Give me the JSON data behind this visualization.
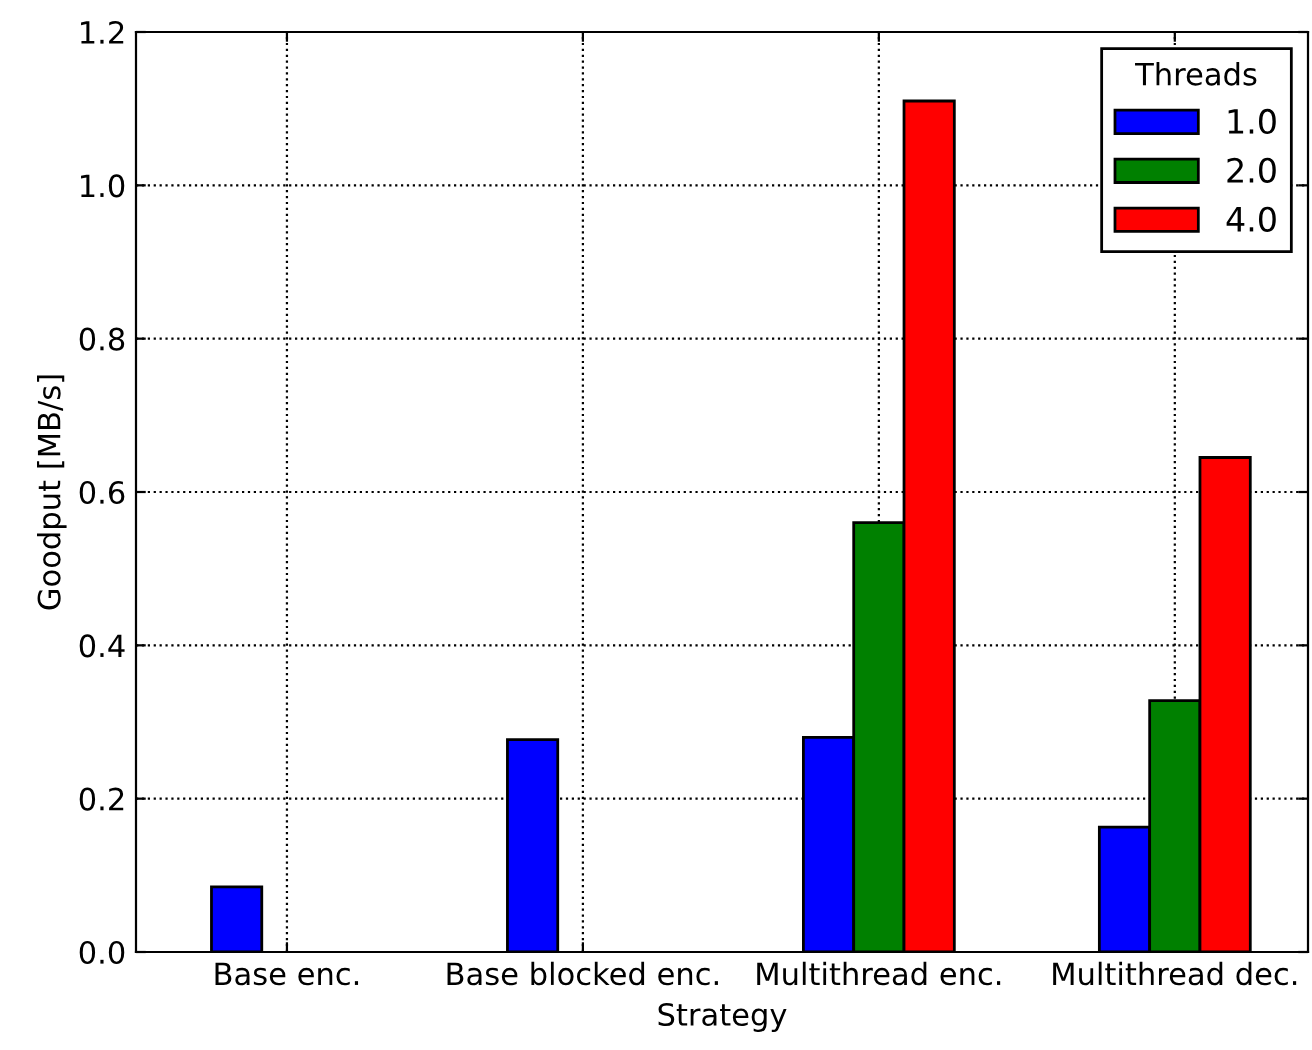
{
  "chart_data": {
    "type": "bar",
    "xlabel": "Strategy",
    "ylabel": "Goodput [MB/s]",
    "legend_title": "Threads",
    "legend": "top right",
    "grid": true,
    "categories": [
      "Base enc.",
      "Base blocked enc.",
      "Multithread enc.",
      "Multithread dec."
    ],
    "series": [
      {
        "name": "1.0",
        "color": "#0000ff",
        "values": [
          0.085,
          0.277,
          0.28,
          0.163
        ]
      },
      {
        "name": "2.0",
        "color": "#008000",
        "values": [
          null,
          null,
          0.56,
          0.328
        ]
      },
      {
        "name": "4.0",
        "color": "#ff0000",
        "values": [
          null,
          null,
          1.11,
          0.645
        ]
      }
    ],
    "ylim": [
      0,
      1.2
    ],
    "yticks": [
      {
        "value": 0,
        "label": "0.0"
      },
      0.2,
      0.4,
      0.6,
      0.8,
      {
        "value": 1,
        "label": "1.0"
      },
      1.2
    ]
  }
}
